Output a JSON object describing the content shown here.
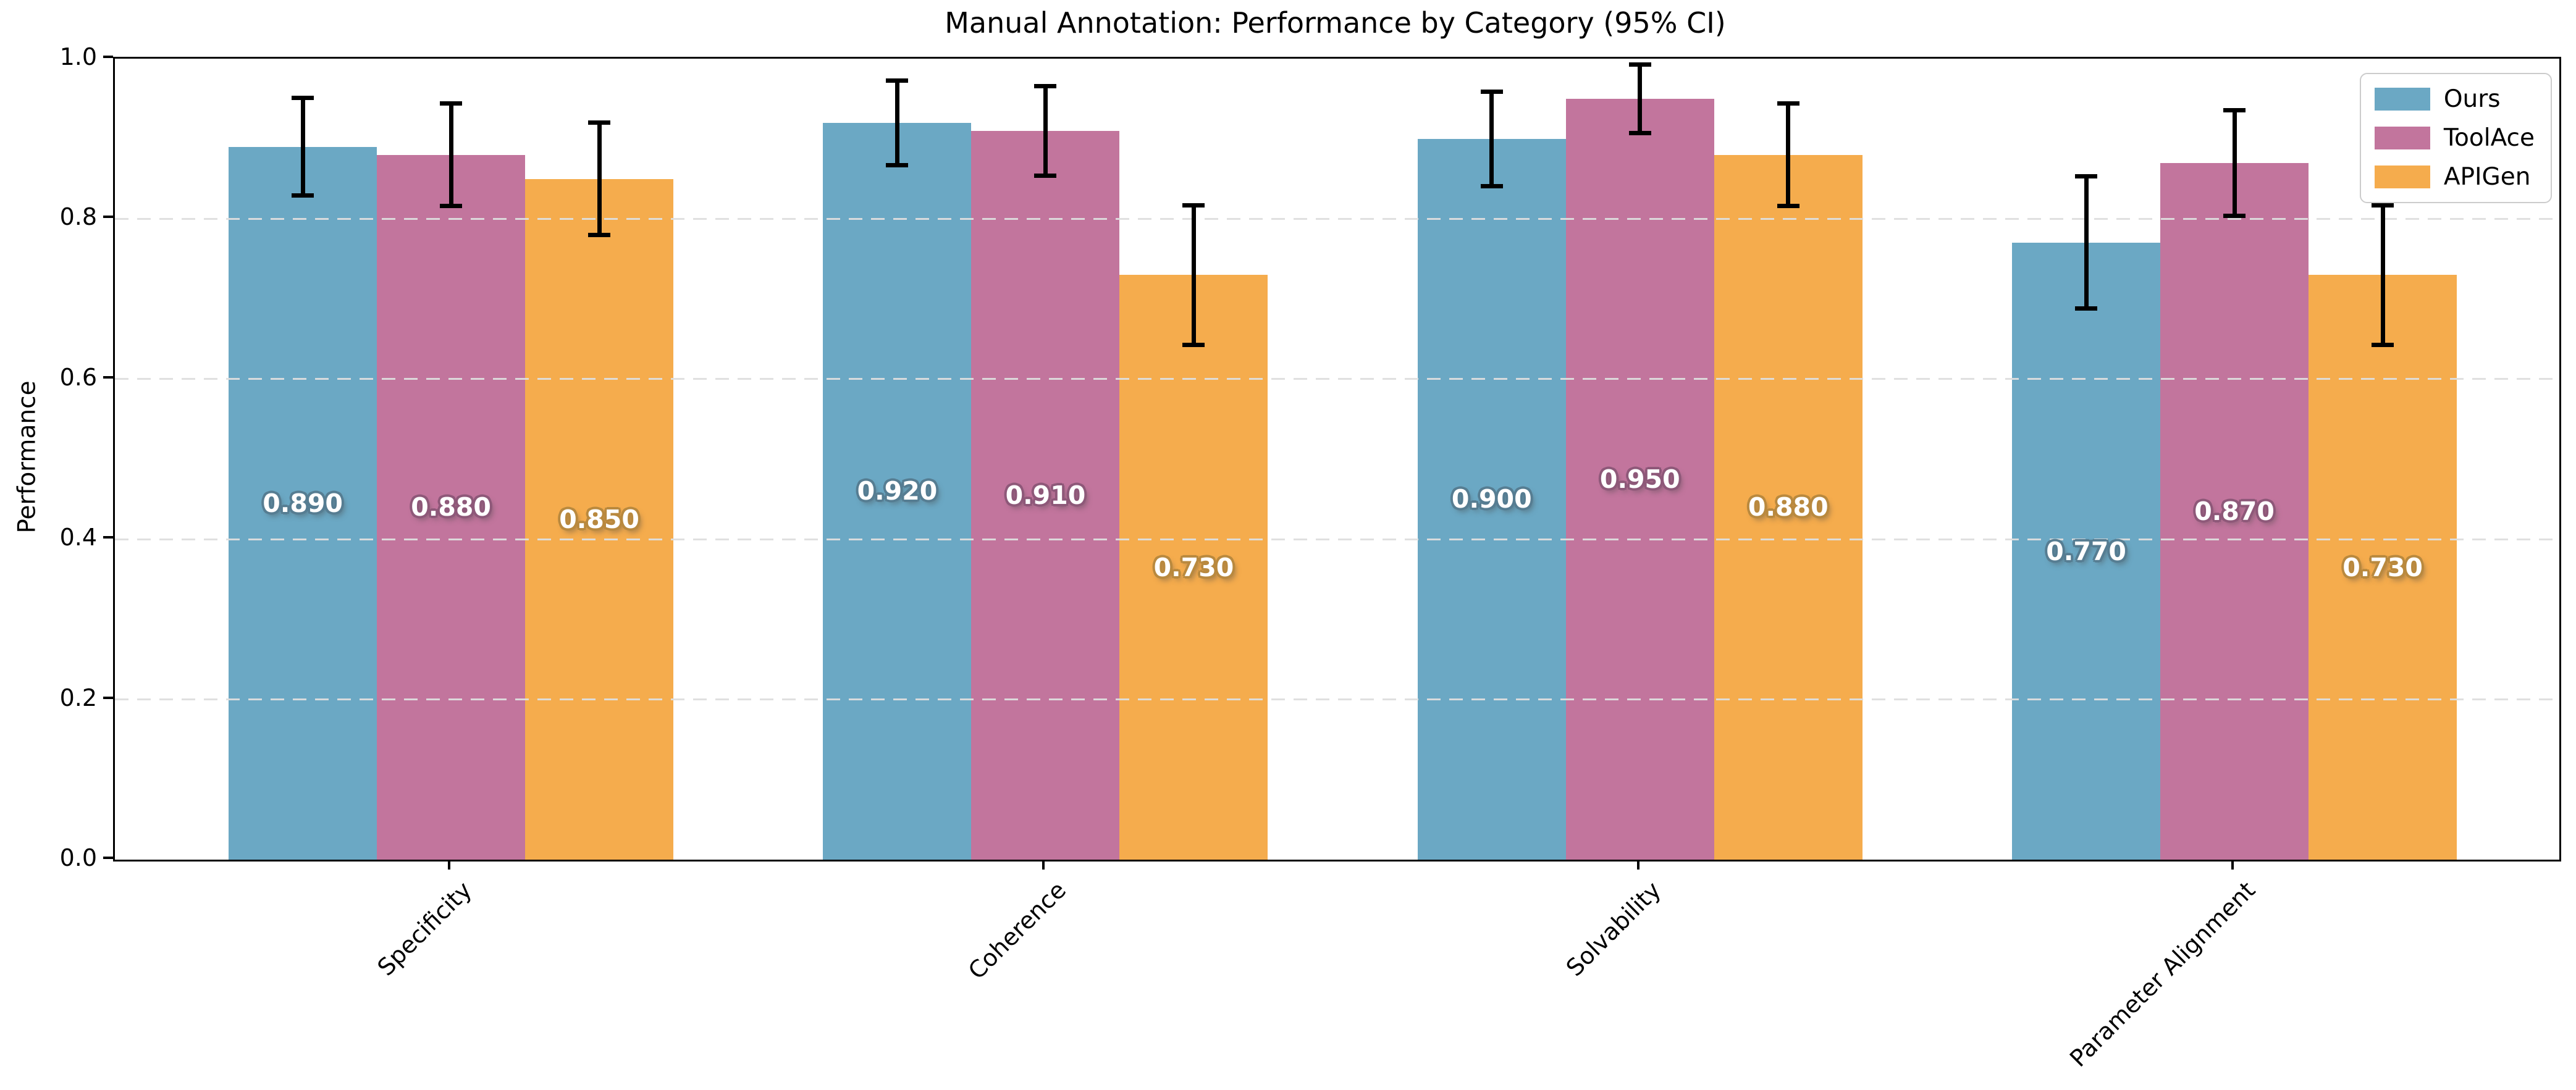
{
  "chart_data": {
    "type": "bar",
    "title": "Manual Annotation: Performance by Category (95% CI)",
    "xlabel": "",
    "ylabel": "Performance",
    "categories": [
      "Specificity",
      "Coherence",
      "Solvability",
      "Parameter Alignment"
    ],
    "series": [
      {
        "name": "Ours",
        "color": "#6BA8C4",
        "label_outline": "#567D92",
        "values": [
          0.89,
          0.92,
          0.9,
          0.77
        ],
        "labels": [
          "0.890",
          "0.920",
          "0.900",
          "0.770"
        ],
        "ci_low": [
          0.829,
          0.867,
          0.841,
          0.688
        ],
        "ci_high": [
          0.951,
          0.973,
          0.959,
          0.853
        ]
      },
      {
        "name": "ToolAce",
        "color": "#C2759D",
        "label_outline": "#8E5879",
        "values": [
          0.88,
          0.91,
          0.95,
          0.87
        ],
        "labels": [
          "0.880",
          "0.910",
          "0.950",
          "0.870"
        ],
        "ci_low": [
          0.816,
          0.854,
          0.907,
          0.804
        ],
        "ci_high": [
          0.944,
          0.966,
          0.993,
          0.936
        ]
      },
      {
        "name": "APIGen",
        "color": "#F5AC4D",
        "label_outline": "#B9893E",
        "values": [
          0.85,
          0.73,
          0.88,
          0.73
        ],
        "labels": [
          "0.850",
          "0.730",
          "0.880",
          "0.730"
        ],
        "ci_low": [
          0.78,
          0.643,
          0.816,
          0.643
        ],
        "ci_high": [
          0.92,
          0.817,
          0.944,
          0.817
        ]
      }
    ],
    "ylim": [
      0.0,
      1.0
    ],
    "yticks": [
      0.0,
      0.2,
      0.4,
      0.6,
      0.8,
      1.0
    ],
    "ytick_labels": [
      "0.0",
      "0.2",
      "0.4",
      "0.6",
      "0.8",
      "1.0"
    ],
    "grid": {
      "axis": "y",
      "style": "dashed",
      "color": "#dedede",
      "on": true,
      "above_bars": true
    },
    "legend": {
      "position": "upper right",
      "entries": [
        "Ours",
        "ToolAce",
        "APIGen"
      ]
    },
    "error_bars": {
      "kind": "95% CI",
      "color": "#000000"
    }
  }
}
